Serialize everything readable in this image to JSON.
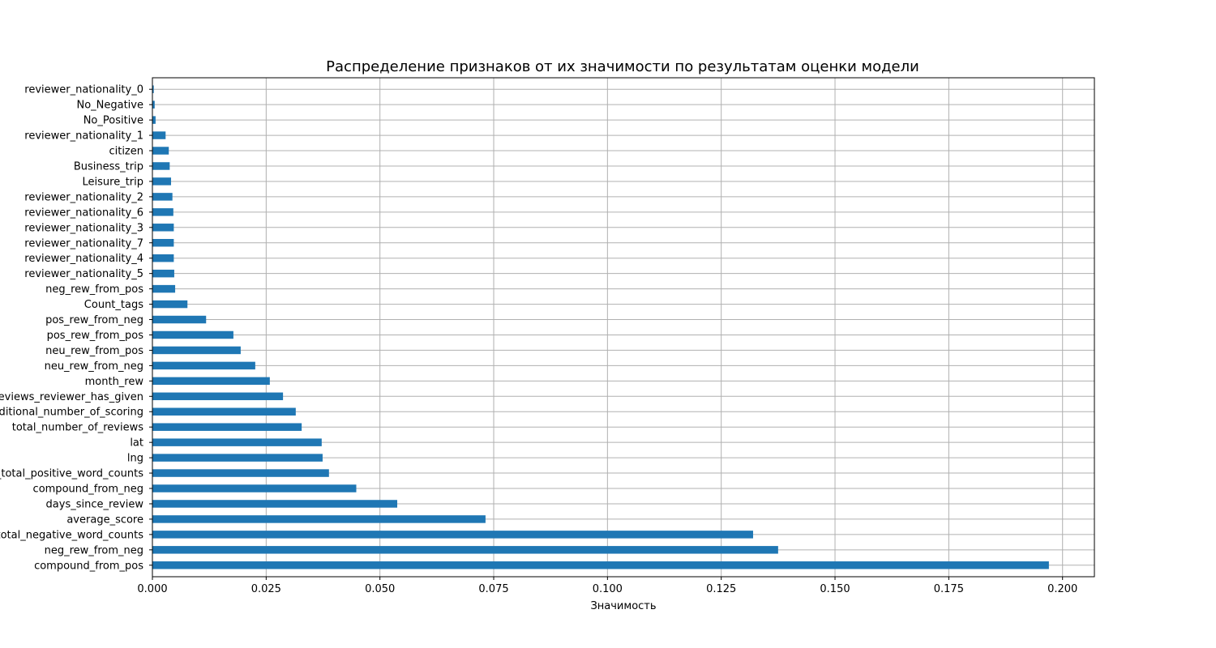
{
  "chart_data": {
    "type": "bar",
    "orientation": "horizontal",
    "title": "Распределение признаков от их значимости по результатам оценки модели",
    "xlabel": "Значимость",
    "ylabel": "",
    "xlim": [
      0.0,
      0.207
    ],
    "x_ticks": [
      0.0,
      0.025,
      0.05,
      0.075,
      0.1,
      0.125,
      0.15,
      0.175,
      0.2
    ],
    "x_tick_labels": [
      "0.000",
      "0.025",
      "0.050",
      "0.075",
      "0.100",
      "0.125",
      "0.150",
      "0.175",
      "0.200"
    ],
    "grid": true,
    "bar_color": "#1f77b4",
    "categories": [
      "compound_from_pos",
      "neg_rew_from_neg",
      "review_total_negative_word_counts",
      "average_score",
      "days_since_review",
      "compound_from_neg",
      "review_total_positive_word_counts",
      "lng",
      "lat",
      "total_number_of_reviews",
      "additional_number_of_scoring",
      "total_number_of_reviews_reviewer_has_given",
      "month_rew",
      "neu_rew_from_neg",
      "neu_rew_from_pos",
      "pos_rew_from_pos",
      "pos_rew_from_neg",
      "Count_tags",
      "neg_rew_from_pos",
      "reviewer_nationality_5",
      "reviewer_nationality_4",
      "reviewer_nationality_7",
      "reviewer_nationality_3",
      "reviewer_nationality_6",
      "reviewer_nationality_2",
      "Leisure_trip",
      "Business_trip",
      "citizen",
      "reviewer_nationality_1",
      "No_Positive",
      "No_Negative",
      "reviewer_nationality_0"
    ],
    "values": [
      0.197,
      0.1375,
      0.132,
      0.0732,
      0.0538,
      0.0448,
      0.0388,
      0.0374,
      0.0372,
      0.0328,
      0.0315,
      0.0287,
      0.0258,
      0.0226,
      0.0194,
      0.0178,
      0.0118,
      0.0077,
      0.005,
      0.0048,
      0.0047,
      0.0047,
      0.0047,
      0.0046,
      0.0044,
      0.0041,
      0.0038,
      0.0036,
      0.0029,
      0.0007,
      0.0005,
      0.0003
    ]
  }
}
